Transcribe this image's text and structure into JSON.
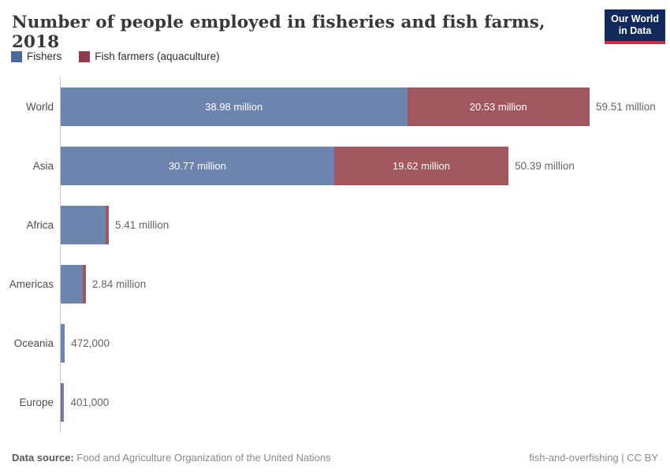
{
  "title": "Number of people employed in fisheries and fish farms, 2018",
  "logo": {
    "line1": "Our World",
    "line2": "in Data",
    "bg_color": "#12295b",
    "accent_color": "#c8313f"
  },
  "legend": {
    "items": [
      {
        "label": "Fishers",
        "color": "#4c6a9d"
      },
      {
        "label": "Fish farmers (aquaculture)",
        "color": "#903b48"
      }
    ]
  },
  "colors": {
    "fishers_bar": "#6d85ae",
    "farmers_bar": "#a2575f",
    "axis_line": "#c9c9c9"
  },
  "chart_data": {
    "type": "bar",
    "orientation": "horizontal-stacked",
    "title": "Number of people employed in fisheries and fish farms, 2018",
    "unit": "people (millions)",
    "xlim": [
      0,
      59.51
    ],
    "grid": false,
    "legend_position": "top-left",
    "series_names": [
      "Fishers",
      "Fish farmers (aquaculture)"
    ],
    "categories": [
      "World",
      "Asia",
      "Africa",
      "Americas",
      "Oceania",
      "Europe"
    ],
    "rows": [
      {
        "category": "World",
        "fishers": 38.98,
        "farmers": 20.53,
        "fishers_label": "38.98 million",
        "farmers_label": "20.53 million",
        "total_label": "59.51 million",
        "farmers_first": false
      },
      {
        "category": "Asia",
        "fishers": 30.77,
        "farmers": 19.62,
        "fishers_label": "30.77 million",
        "farmers_label": "19.62 million",
        "total_label": "50.39 million",
        "farmers_first": false
      },
      {
        "category": "Africa",
        "fishers": 5.01,
        "farmers": 0.4,
        "total_label": "5.41 million",
        "farmers_first": false
      },
      {
        "category": "Americas",
        "fishers": 2.46,
        "farmers": 0.38,
        "total_label": "2.84 million",
        "farmers_first": false
      },
      {
        "category": "Oceania",
        "fishers": 0.46,
        "farmers": 0.012,
        "total_label": "472,000",
        "farmers_first": false
      },
      {
        "category": "Europe",
        "fishers": 0.3,
        "farmers": 0.1,
        "total_label": "401,000",
        "farmers_first": true
      }
    ]
  },
  "footer": {
    "source_label": "Data source:",
    "source": "Food and Agriculture Organization of the United Nations",
    "note": "fish-and-overfishing | CC BY"
  }
}
